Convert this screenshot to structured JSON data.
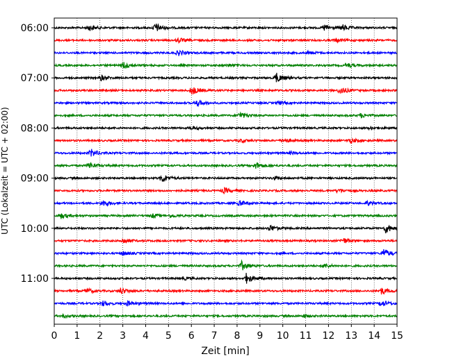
{
  "chart_data": {
    "type": "line",
    "title": "",
    "xlabel": "Zeit  [min]",
    "ylabel": "UTC (Lokalzeit = UTC + 02:00)",
    "xlim": [
      0,
      15
    ],
    "x_ticks": [
      0,
      1,
      2,
      3,
      4,
      5,
      6,
      7,
      8,
      9,
      10,
      11,
      12,
      13,
      14,
      15
    ],
    "x_tick_labels": [
      "0",
      "1",
      "2",
      "3",
      "4",
      "5",
      "6",
      "7",
      "8",
      "9",
      "10",
      "11",
      "12",
      "13",
      "14",
      "15"
    ],
    "y_tick_labels": [
      "06:00",
      "07:00",
      "08:00",
      "09:00",
      "10:00",
      "11:00"
    ],
    "y_tick_rows": [
      0,
      4,
      8,
      12,
      16,
      20
    ],
    "grid": "vertical dotted",
    "legend": "none",
    "row_duration_min": 15,
    "color_cycle": [
      "#000000",
      "#ff0000",
      "#0000ff",
      "#008000"
    ],
    "rows": [
      {
        "start": "06:00",
        "color": "#000000",
        "events": [
          [
            1.5,
            0.6
          ],
          [
            4.4,
            1.0
          ],
          [
            11.8,
            0.7
          ],
          [
            12.6,
            0.6
          ]
        ]
      },
      {
        "start": "06:15",
        "color": "#ff0000",
        "events": [
          [
            5.4,
            0.5
          ],
          [
            12.3,
            0.4
          ]
        ]
      },
      {
        "start": "06:30",
        "color": "#0000ff",
        "events": [
          [
            5.4,
            0.6
          ],
          [
            11.1,
            0.3
          ]
        ]
      },
      {
        "start": "06:45",
        "color": "#008000",
        "events": [
          [
            3.0,
            0.8
          ],
          [
            7.6,
            0.3
          ],
          [
            12.8,
            0.4
          ]
        ]
      },
      {
        "start": "07:00",
        "color": "#000000",
        "events": [
          [
            2.0,
            0.6
          ],
          [
            9.7,
            1.0
          ]
        ]
      },
      {
        "start": "07:15",
        "color": "#ff0000",
        "events": [
          [
            6.0,
            0.9
          ],
          [
            12.5,
            0.8
          ]
        ]
      },
      {
        "start": "07:30",
        "color": "#0000ff",
        "events": [
          [
            6.2,
            0.7
          ],
          [
            9.8,
            0.3
          ]
        ]
      },
      {
        "start": "07:45",
        "color": "#008000",
        "events": [
          [
            8.1,
            0.7
          ],
          [
            13.4,
            0.4
          ]
        ]
      },
      {
        "start": "08:00",
        "color": "#000000",
        "events": [
          [
            6.0,
            0.3
          ],
          [
            13.8,
            0.3
          ]
        ]
      },
      {
        "start": "08:15",
        "color": "#ff0000",
        "events": [
          [
            8.1,
            0.4
          ],
          [
            10.0,
            0.5
          ],
          [
            12.9,
            0.5
          ]
        ]
      },
      {
        "start": "08:30",
        "color": "#0000ff",
        "events": [
          [
            1.6,
            0.8
          ],
          [
            10.3,
            0.3
          ]
        ]
      },
      {
        "start": "08:45",
        "color": "#008000",
        "events": [
          [
            1.5,
            0.7
          ],
          [
            8.8,
            0.7
          ]
        ]
      },
      {
        "start": "09:00",
        "color": "#000000",
        "events": [
          [
            4.7,
            0.9
          ],
          [
            9.6,
            0.3
          ]
        ]
      },
      {
        "start": "09:15",
        "color": "#ff0000",
        "events": [
          [
            7.4,
            0.6
          ],
          [
            12.4,
            0.4
          ]
        ]
      },
      {
        "start": "09:30",
        "color": "#0000ff",
        "events": [
          [
            2.1,
            0.7
          ],
          [
            8.1,
            0.6
          ],
          [
            13.7,
            0.4
          ]
        ]
      },
      {
        "start": "09:45",
        "color": "#008000",
        "events": [
          [
            0.3,
            0.5
          ],
          [
            4.3,
            0.4
          ],
          [
            5.1,
            0.3
          ]
        ]
      },
      {
        "start": "10:00",
        "color": "#000000",
        "events": [
          [
            9.4,
            0.7
          ],
          [
            14.5,
            0.9
          ]
        ]
      },
      {
        "start": "10:15",
        "color": "#ff0000",
        "events": [
          [
            3.0,
            0.6
          ],
          [
            12.6,
            0.6
          ]
        ]
      },
      {
        "start": "10:30",
        "color": "#0000ff",
        "events": [
          [
            3.0,
            0.4
          ],
          [
            14.4,
            0.9
          ]
        ]
      },
      {
        "start": "10:45",
        "color": "#008000",
        "events": [
          [
            8.2,
            0.9
          ],
          [
            11.8,
            0.4
          ]
        ]
      },
      {
        "start": "11:00",
        "color": "#000000",
        "events": [
          [
            8.4,
            1.0
          ],
          [
            5.6,
            0.3
          ]
        ]
      },
      {
        "start": "11:15",
        "color": "#ff0000",
        "events": [
          [
            1.4,
            0.5
          ],
          [
            2.9,
            0.6
          ],
          [
            14.3,
            0.7
          ]
        ]
      },
      {
        "start": "11:30",
        "color": "#0000ff",
        "events": [
          [
            2.1,
            0.5
          ],
          [
            3.2,
            0.5
          ],
          [
            14.3,
            0.7
          ]
        ]
      },
      {
        "start": "11:45",
        "color": "#008000",
        "events": [
          [
            0.4,
            0.3
          ],
          [
            10.9,
            0.3
          ]
        ]
      }
    ]
  }
}
